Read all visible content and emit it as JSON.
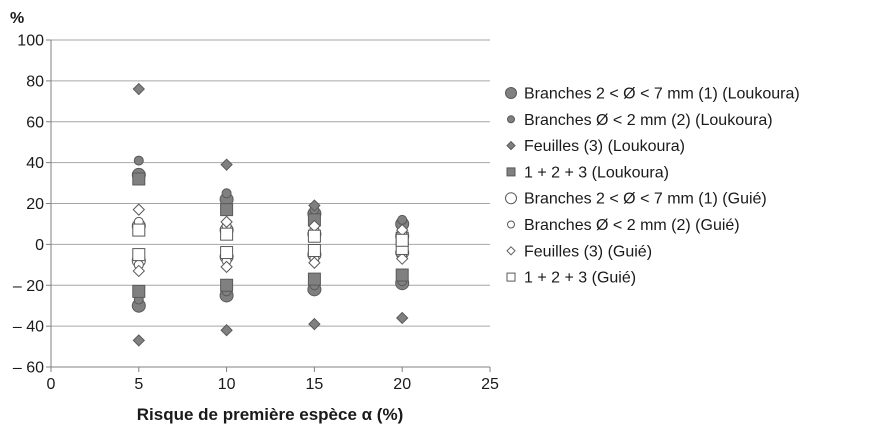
{
  "chart_data": {
    "type": "scatter",
    "ylabel": "%",
    "xlabel": "Risque de première espèce α (%)",
    "xlim": [
      0,
      25
    ],
    "ylim": [
      -60,
      100
    ],
    "x_ticks": [
      {
        "value": 0,
        "label": "0"
      },
      {
        "value": 5,
        "label": "5"
      },
      {
        "value": 10,
        "label": "10"
      },
      {
        "value": 15,
        "label": "15"
      },
      {
        "value": 20,
        "label": "20"
      },
      {
        "value": 25,
        "label": "25"
      }
    ],
    "y_ticks": [
      {
        "value": -60,
        "label": "– 60"
      },
      {
        "value": -40,
        "label": "– 40"
      },
      {
        "value": -20,
        "label": "– 20"
      },
      {
        "value": 0,
        "label": "0"
      },
      {
        "value": 20,
        "label": "20"
      },
      {
        "value": 40,
        "label": "40"
      },
      {
        "value": 60,
        "label": "60"
      },
      {
        "value": 80,
        "label": "80"
      },
      {
        "value": 100,
        "label": "100"
      }
    ],
    "grid": "horizontal",
    "legend_position": "right",
    "series": [
      {
        "name": "Branches 2 < Ø < 7 mm (1) (Loukoura)",
        "marker": "circle-large",
        "fill": "#808080",
        "points": [
          {
            "x": 5,
            "y": -30
          },
          {
            "x": 5,
            "y": 34
          },
          {
            "x": 10,
            "y": -25
          },
          {
            "x": 10,
            "y": 22
          },
          {
            "x": 15,
            "y": -22
          },
          {
            "x": 15,
            "y": 15
          },
          {
            "x": 20,
            "y": -19
          },
          {
            "x": 20,
            "y": 10
          }
        ]
      },
      {
        "name": "Branches Ø < 2 mm (2) (Loukoura)",
        "marker": "circle-small",
        "fill": "#808080",
        "points": [
          {
            "x": 5,
            "y": -27
          },
          {
            "x": 5,
            "y": 41
          },
          {
            "x": 10,
            "y": -23
          },
          {
            "x": 10,
            "y": 25
          },
          {
            "x": 15,
            "y": -20
          },
          {
            "x": 15,
            "y": 17
          },
          {
            "x": 20,
            "y": -18
          },
          {
            "x": 20,
            "y": 12
          }
        ]
      },
      {
        "name": "Feuilles (3) (Loukoura)",
        "marker": "diamond",
        "fill": "#808080",
        "points": [
          {
            "x": 5,
            "y": -47
          },
          {
            "x": 5,
            "y": 76
          },
          {
            "x": 10,
            "y": -42
          },
          {
            "x": 10,
            "y": 39
          },
          {
            "x": 15,
            "y": -39
          },
          {
            "x": 15,
            "y": 19
          },
          {
            "x": 20,
            "y": -36
          },
          {
            "x": 20,
            "y": 5
          }
        ]
      },
      {
        "name": "1 + 2 + 3 (Loukoura)",
        "marker": "square",
        "fill": "#808080",
        "points": [
          {
            "x": 5,
            "y": -23
          },
          {
            "x": 5,
            "y": 32
          },
          {
            "x": 10,
            "y": -20
          },
          {
            "x": 10,
            "y": 17
          },
          {
            "x": 15,
            "y": -17
          },
          {
            "x": 15,
            "y": 12
          },
          {
            "x": 20,
            "y": -15
          },
          {
            "x": 20,
            "y": 3
          }
        ]
      },
      {
        "name": "Branches 2 < Ø < 7 mm (1) (Guié)",
        "marker": "circle-large",
        "fill": "#ffffff",
        "points": [
          {
            "x": 5,
            "y": -8
          },
          {
            "x": 5,
            "y": 9
          },
          {
            "x": 10,
            "y": -6
          },
          {
            "x": 10,
            "y": 7
          },
          {
            "x": 15,
            "y": -5
          },
          {
            "x": 15,
            "y": 5
          },
          {
            "x": 20,
            "y": -4
          },
          {
            "x": 20,
            "y": 4
          }
        ]
      },
      {
        "name": "Branches Ø < 2 mm (2) (Guié)",
        "marker": "circle-small",
        "fill": "#ffffff",
        "points": [
          {
            "x": 5,
            "y": -10
          },
          {
            "x": 5,
            "y": 11
          },
          {
            "x": 10,
            "y": -8
          },
          {
            "x": 10,
            "y": 9
          },
          {
            "x": 15,
            "y": -7
          },
          {
            "x": 15,
            "y": 7
          },
          {
            "x": 20,
            "y": -6
          },
          {
            "x": 20,
            "y": 6
          }
        ]
      },
      {
        "name": "Feuilles (3) (Guié)",
        "marker": "diamond",
        "fill": "#ffffff",
        "points": [
          {
            "x": 5,
            "y": -13
          },
          {
            "x": 5,
            "y": 17
          },
          {
            "x": 10,
            "y": -11
          },
          {
            "x": 10,
            "y": 11
          },
          {
            "x": 15,
            "y": -9
          },
          {
            "x": 15,
            "y": 9
          },
          {
            "x": 20,
            "y": -7
          },
          {
            "x": 20,
            "y": 7
          }
        ]
      },
      {
        "name": "1 + 2 + 3 (Guié)",
        "marker": "square",
        "fill": "#ffffff",
        "points": [
          {
            "x": 5,
            "y": -5
          },
          {
            "x": 5,
            "y": 7
          },
          {
            "x": 10,
            "y": -4
          },
          {
            "x": 10,
            "y": 5
          },
          {
            "x": 15,
            "y": -3
          },
          {
            "x": 15,
            "y": 4
          },
          {
            "x": 20,
            "y": -2
          },
          {
            "x": 20,
            "y": 2
          }
        ]
      }
    ]
  }
}
